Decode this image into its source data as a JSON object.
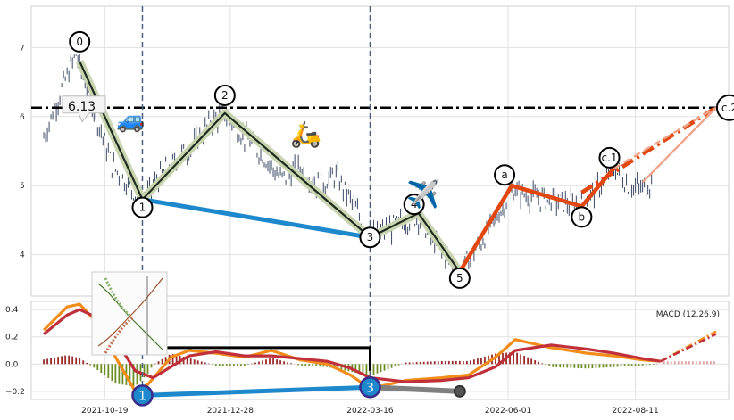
{
  "chart_data": [
    {
      "type": "candlestick",
      "panel": "price",
      "grid": true,
      "ylim": [
        3.4,
        7.6
      ],
      "yticks": [
        "4",
        "5",
        "6",
        "7"
      ],
      "xticks": [
        "2021-10-19",
        "2021-12-28",
        "2022-03-16",
        "2022-06-01",
        "2022-08-11"
      ],
      "ohlc_path": [
        {
          "x": "2021-09-15",
          "y": 5.7
        },
        {
          "x": "2021-09-25",
          "y": 6.4
        },
        {
          "x": "2021-10-03",
          "y": 6.9
        },
        {
          "x": "2021-10-13",
          "y": 6.1
        },
        {
          "x": "2021-10-23",
          "y": 5.3
        },
        {
          "x": "2021-11-02",
          "y": 5.0
        },
        {
          "x": "2021-11-09",
          "y": 4.75
        },
        {
          "x": "2021-11-18",
          "y": 5.1
        },
        {
          "x": "2021-11-28",
          "y": 5.4
        },
        {
          "x": "2021-12-08",
          "y": 5.6
        },
        {
          "x": "2021-12-18",
          "y": 5.95
        },
        {
          "x": "2021-12-25",
          "y": 6.05
        },
        {
          "x": "2022-01-05",
          "y": 5.7
        },
        {
          "x": "2022-01-15",
          "y": 5.45
        },
        {
          "x": "2022-01-25",
          "y": 5.1
        },
        {
          "x": "2022-02-05",
          "y": 5.25
        },
        {
          "x": "2022-02-15",
          "y": 5.0
        },
        {
          "x": "2022-02-25",
          "y": 5.15
        },
        {
          "x": "2022-03-05",
          "y": 4.8
        },
        {
          "x": "2022-03-16",
          "y": 4.25
        },
        {
          "x": "2022-03-25",
          "y": 4.35
        },
        {
          "x": "2022-04-05",
          "y": 4.5
        },
        {
          "x": "2022-04-12",
          "y": 4.55
        },
        {
          "x": "2022-04-20",
          "y": 4.2
        },
        {
          "x": "2022-04-28",
          "y": 3.95
        },
        {
          "x": "2022-05-05",
          "y": 3.75
        },
        {
          "x": "2022-05-12",
          "y": 4.0
        },
        {
          "x": "2022-05-20",
          "y": 4.3
        },
        {
          "x": "2022-05-28",
          "y": 4.65
        },
        {
          "x": "2022-06-03",
          "y": 4.95
        },
        {
          "x": "2022-06-12",
          "y": 4.85
        },
        {
          "x": "2022-06-22",
          "y": 4.8
        },
        {
          "x": "2022-07-02",
          "y": 4.75
        },
        {
          "x": "2022-07-12",
          "y": 4.7
        },
        {
          "x": "2022-07-22",
          "y": 5.0
        },
        {
          "x": "2022-07-30",
          "y": 5.25
        },
        {
          "x": "2022-08-07",
          "y": 5.0
        },
        {
          "x": "2022-08-15",
          "y": 4.95
        },
        {
          "x": "2022-08-20",
          "y": 5.05
        }
      ],
      "points": [
        {
          "label": "0",
          "x": "2021-10-05",
          "y": 6.8
        },
        {
          "label": "1",
          "x": "2021-11-09",
          "y": 4.8
        },
        {
          "label": "2",
          "x": "2021-12-25",
          "y": 6.05
        },
        {
          "label": "3",
          "x": "2022-03-16",
          "y": 4.25
        },
        {
          "label": "4",
          "x": "2022-04-12",
          "y": 4.6
        },
        {
          "label": "5",
          "x": "2022-05-05",
          "y": 3.75
        },
        {
          "label": "a",
          "x": "2022-06-03",
          "y": 5.0
        },
        {
          "label": "b",
          "x": "2022-07-12",
          "y": 4.7
        },
        {
          "label": "c.1",
          "x": "2022-07-30",
          "y": 5.25
        },
        {
          "label": "c.2",
          "x": "2022-09-25",
          "y": 6.13
        }
      ],
      "hline": {
        "y": 6.13,
        "label": "6.13"
      },
      "vlines": [
        "2021-11-09",
        "2022-03-16"
      ],
      "projection": {
        "from": "2022-07-30",
        "to": "2022-09-25",
        "y_from": 5.25,
        "y_to": 6.13
      }
    },
    {
      "type": "macd",
      "panel": "indicator",
      "label": "MACD (12,26,9)",
      "ylim": [
        -0.26,
        0.46
      ],
      "yticks": [
        "0.4",
        "0.2",
        "0.0",
        "−0.2"
      ],
      "macd": [
        {
          "x": "2021-09-15",
          "y": 0.25
        },
        {
          "x": "2021-09-28",
          "y": 0.42
        },
        {
          "x": "2021-10-05",
          "y": 0.44
        },
        {
          "x": "2021-10-15",
          "y": 0.3
        },
        {
          "x": "2021-10-25",
          "y": 0.05
        },
        {
          "x": "2021-11-05",
          "y": -0.2
        },
        {
          "x": "2021-11-12",
          "y": -0.15
        },
        {
          "x": "2021-11-25",
          "y": 0.05
        },
        {
          "x": "2021-12-05",
          "y": 0.1
        },
        {
          "x": "2021-12-20",
          "y": 0.08
        },
        {
          "x": "2022-01-05",
          "y": 0.05
        },
        {
          "x": "2022-01-20",
          "y": 0.1
        },
        {
          "x": "2022-02-05",
          "y": 0.03
        },
        {
          "x": "2022-02-20",
          "y": 0.0
        },
        {
          "x": "2022-03-05",
          "y": -0.08
        },
        {
          "x": "2022-03-16",
          "y": -0.18
        },
        {
          "x": "2022-04-05",
          "y": -0.12
        },
        {
          "x": "2022-04-25",
          "y": -0.1
        },
        {
          "x": "2022-05-10",
          "y": -0.08
        },
        {
          "x": "2022-05-25",
          "y": 0.05
        },
        {
          "x": "2022-06-05",
          "y": 0.18
        },
        {
          "x": "2022-06-25",
          "y": 0.12
        },
        {
          "x": "2022-07-15",
          "y": 0.08
        },
        {
          "x": "2022-07-30",
          "y": 0.06
        },
        {
          "x": "2022-08-15",
          "y": 0.03
        },
        {
          "x": "2022-08-25",
          "y": 0.02
        }
      ],
      "signal": [
        {
          "x": "2021-09-15",
          "y": 0.22
        },
        {
          "x": "2021-09-28",
          "y": 0.36
        },
        {
          "x": "2021-10-05",
          "y": 0.4
        },
        {
          "x": "2021-10-15",
          "y": 0.34
        },
        {
          "x": "2021-10-25",
          "y": 0.18
        },
        {
          "x": "2021-11-05",
          "y": -0.05
        },
        {
          "x": "2021-11-15",
          "y": -0.1
        },
        {
          "x": "2021-11-25",
          "y": -0.02
        },
        {
          "x": "2021-12-05",
          "y": 0.06
        },
        {
          "x": "2021-12-20",
          "y": 0.09
        },
        {
          "x": "2022-01-05",
          "y": 0.06
        },
        {
          "x": "2022-01-20",
          "y": 0.06
        },
        {
          "x": "2022-02-05",
          "y": 0.04
        },
        {
          "x": "2022-02-20",
          "y": 0.02
        },
        {
          "x": "2022-03-05",
          "y": -0.03
        },
        {
          "x": "2022-03-16",
          "y": -0.1
        },
        {
          "x": "2022-04-05",
          "y": -0.13
        },
        {
          "x": "2022-04-25",
          "y": -0.12
        },
        {
          "x": "2022-05-10",
          "y": -0.1
        },
        {
          "x": "2022-05-25",
          "y": -0.02
        },
        {
          "x": "2022-06-05",
          "y": 0.1
        },
        {
          "x": "2022-06-25",
          "y": 0.14
        },
        {
          "x": "2022-07-15",
          "y": 0.11
        },
        {
          "x": "2022-07-30",
          "y": 0.08
        },
        {
          "x": "2022-08-15",
          "y": 0.04
        },
        {
          "x": "2022-08-25",
          "y": 0.02
        }
      ],
      "points": [
        {
          "label": "1",
          "x": "2021-11-09",
          "y": -0.23
        },
        {
          "label": "3",
          "x": "2022-03-16",
          "y": -0.17
        }
      ]
    }
  ]
}
